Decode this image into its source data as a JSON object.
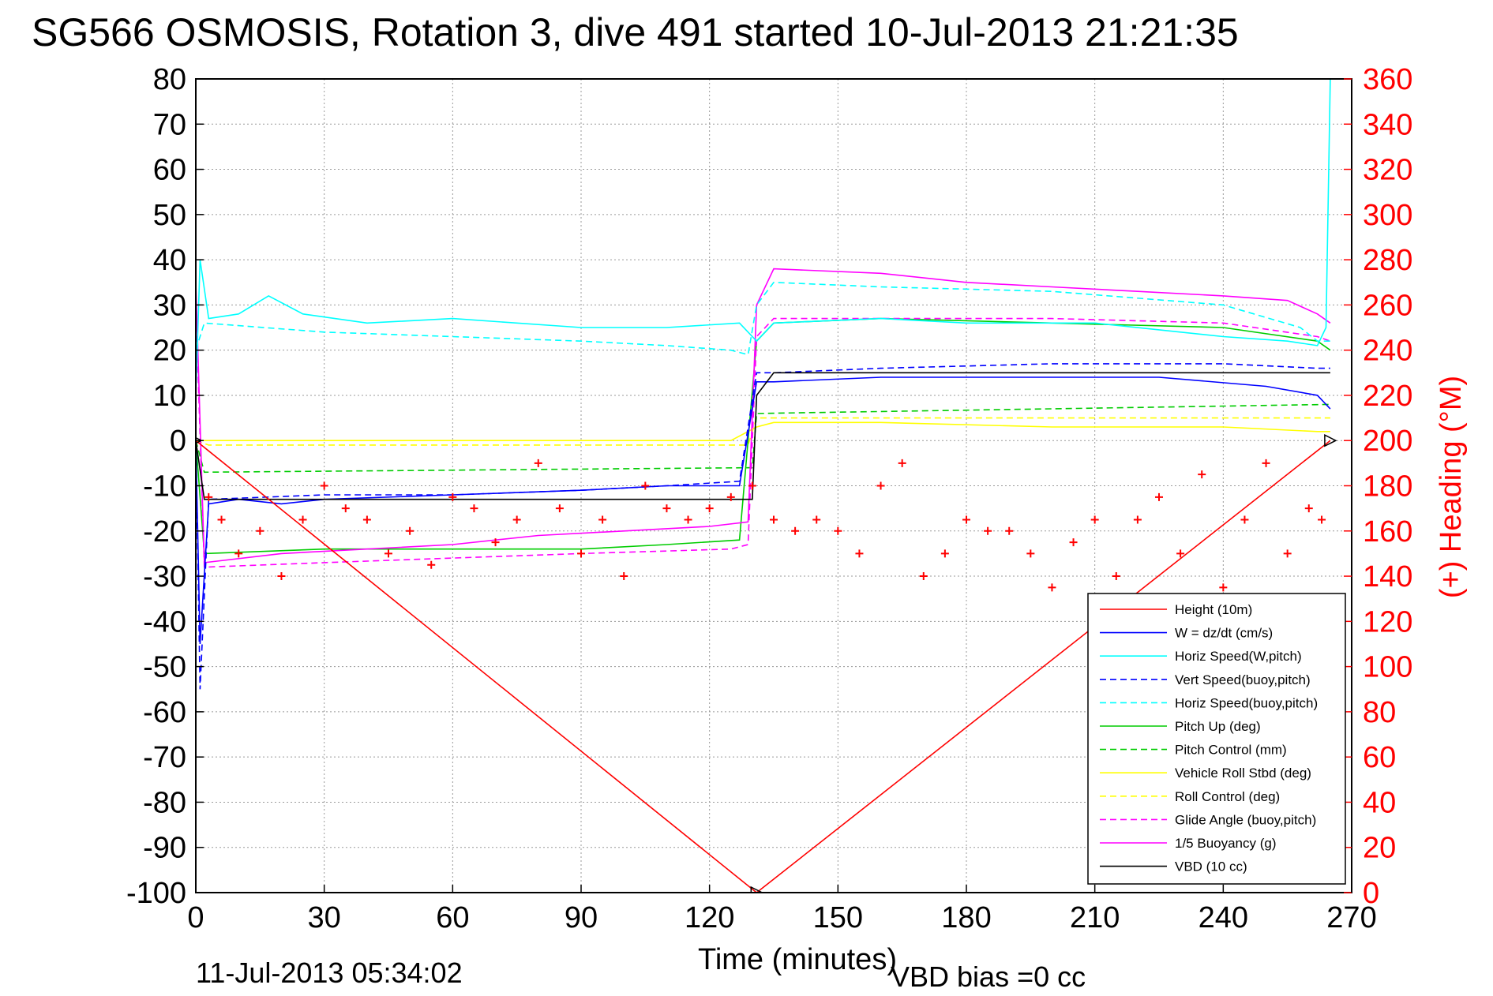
{
  "chart_data": {
    "type": "line",
    "title": "SG566 OSMOSIS, Rotation 3, dive 491 started 10-Jul-2013 21:21:35",
    "xlabel": "Time (minutes)",
    "ylabel": "",
    "y2label": "(+) Heading (°M)",
    "bottom_left_note": "11-Jul-2013 05:34:02",
    "bottom_right_note": "VBD bias =0 cc",
    "xlim": [
      0,
      270
    ],
    "ylim": [
      -100,
      80
    ],
    "y2lim": [
      0,
      360
    ],
    "grid": true,
    "legend_position": "bottom-right",
    "x_ticks": [
      "0",
      "30",
      "60",
      "90",
      "120",
      "150",
      "180",
      "210",
      "240",
      "270"
    ],
    "y_ticks": [
      "80",
      "70",
      "60",
      "50",
      "40",
      "30",
      "20",
      "10",
      "0",
      "-10",
      "-20",
      "-30",
      "-40",
      "-50",
      "-60",
      "-70",
      "-80",
      "-90",
      "-100"
    ],
    "y2_ticks": [
      "360",
      "340",
      "320",
      "300",
      "280",
      "260",
      "240",
      "220",
      "200",
      "180",
      "160",
      "140",
      "120",
      "100",
      "80",
      "60",
      "40",
      "20",
      "0"
    ],
    "colors": {
      "height": "#ff0000",
      "w": "#0000ff",
      "horiz_w": "#00ffff",
      "vert_buoy": "#0000ff",
      "horiz_buoy": "#00ffff",
      "pitch_up": "#00cc00",
      "pitch_ctrl": "#00cc00",
      "roll": "#ffff00",
      "roll_ctrl": "#ffff00",
      "glide": "#ff00ff",
      "buoy": "#ff00ff",
      "vbd": "#000000",
      "heading": "#ff0000",
      "right_axis": "#ff0000"
    },
    "series": [
      {
        "name": "Height (10m)",
        "key": "height",
        "style": "solid",
        "x": [
          0,
          131,
          265
        ],
        "values": [
          0,
          -100,
          0
        ]
      },
      {
        "name": "W = dz/dt (cm/s)",
        "key": "w",
        "style": "solid",
        "x": [
          0,
          1,
          3,
          10,
          20,
          30,
          60,
          90,
          110,
          127,
          131,
          135,
          160,
          200,
          225,
          250,
          262,
          265
        ],
        "values": [
          0,
          -45,
          -14,
          -13,
          -14,
          -13,
          -12,
          -11,
          -10,
          -10,
          13,
          13,
          14,
          14,
          14,
          12,
          10,
          7
        ]
      },
      {
        "name": "Horiz Speed(W,pitch)",
        "key": "horiz_w",
        "style": "solid",
        "x": [
          0,
          1,
          3,
          10,
          17,
          25,
          40,
          60,
          90,
          110,
          127,
          131,
          135,
          160,
          180,
          210,
          240,
          255,
          262,
          264,
          265
        ],
        "values": [
          10,
          40,
          27,
          28,
          32,
          28,
          26,
          27,
          25,
          25,
          26,
          22,
          26,
          27,
          26,
          26,
          23,
          22,
          21,
          25,
          80
        ]
      },
      {
        "name": "Vert Speed(buoy,pitch)",
        "key": "vert_buoy",
        "style": "dashed",
        "x": [
          0,
          1,
          3,
          30,
          60,
          90,
          110,
          127,
          131,
          135,
          160,
          200,
          240,
          262,
          265
        ],
        "values": [
          0,
          -55,
          -13,
          -12,
          -12,
          -11,
          -10,
          -9,
          15,
          15,
          16,
          17,
          17,
          16,
          16
        ]
      },
      {
        "name": "Horiz Speed(buoy,pitch)",
        "key": "horiz_buoy",
        "style": "dashed",
        "x": [
          0,
          2,
          30,
          60,
          90,
          110,
          125,
          129,
          131,
          135,
          160,
          200,
          240,
          258,
          262,
          265
        ],
        "values": [
          20,
          26,
          24,
          23,
          22,
          21,
          20,
          19,
          30,
          35,
          34,
          33,
          30,
          25,
          22,
          22
        ]
      },
      {
        "name": "Pitch Up (deg)",
        "key": "pitch_up",
        "style": "solid",
        "x": [
          0,
          2,
          30,
          60,
          90,
          110,
          127,
          131,
          135,
          160,
          200,
          240,
          262,
          265
        ],
        "values": [
          0,
          -25,
          -24,
          -24,
          -24,
          -23,
          -22,
          22,
          26,
          27,
          26,
          25,
          22,
          20
        ]
      },
      {
        "name": "Pitch Control (mm)",
        "key": "pitch_ctrl",
        "style": "dashed",
        "x": [
          0,
          2,
          130,
          131,
          265
        ],
        "values": [
          0,
          -7,
          -6,
          6,
          8
        ]
      },
      {
        "name": "Vehicle Roll Stbd (deg)",
        "key": "roll",
        "style": "solid",
        "x": [
          0,
          3,
          125,
          131,
          135,
          160,
          200,
          240,
          262,
          265
        ],
        "values": [
          0,
          0,
          0,
          3,
          4,
          4,
          3,
          3,
          2,
          2
        ]
      },
      {
        "name": "Roll Control (deg)",
        "key": "roll_ctrl",
        "style": "dashed",
        "x": [
          0,
          3,
          129,
          131,
          265
        ],
        "values": [
          0,
          -1,
          -1,
          5,
          5
        ]
      },
      {
        "name": "Glide Angle (buoy,pitch)",
        "key": "glide",
        "style": "dashed",
        "x": [
          0,
          2,
          30,
          60,
          90,
          125,
          129,
          131,
          135,
          160,
          200,
          240,
          262,
          265
        ],
        "values": [
          30,
          -28,
          -27,
          -26,
          -25,
          -24,
          -23,
          23,
          27,
          27,
          27,
          26,
          23,
          22
        ]
      },
      {
        "name": "1/5 Buoyancy (g)",
        "key": "buoy",
        "style": "solid",
        "x": [
          0,
          2,
          20,
          40,
          60,
          80,
          100,
          120,
          129,
          131,
          135,
          160,
          180,
          200,
          220,
          240,
          255,
          262,
          265
        ],
        "values": [
          35,
          -27,
          -25,
          -24,
          -23,
          -21,
          -20,
          -19,
          -18,
          30,
          38,
          37,
          35,
          34,
          33,
          32,
          31,
          28,
          26
        ]
      },
      {
        "name": "VBD (10 cc)",
        "key": "vbd",
        "style": "solid",
        "x": [
          0,
          2,
          130,
          131,
          135,
          262,
          265
        ],
        "values": [
          0,
          -13,
          -13,
          10,
          15,
          15,
          15
        ]
      },
      {
        "name": "Heading (°M)",
        "key": "heading",
        "style": "markers",
        "axis": "right",
        "x": [
          3,
          6,
          10,
          15,
          20,
          25,
          30,
          35,
          40,
          45,
          50,
          55,
          60,
          65,
          70,
          75,
          80,
          85,
          90,
          95,
          100,
          105,
          110,
          115,
          120,
          125,
          130,
          135,
          140,
          145,
          150,
          155,
          160,
          165,
          170,
          175,
          180,
          185,
          190,
          195,
          200,
          205,
          210,
          215,
          220,
          225,
          230,
          235,
          240,
          245,
          250,
          255,
          260,
          263
        ],
        "values": [
          175,
          165,
          150,
          160,
          140,
          165,
          180,
          170,
          165,
          150,
          160,
          145,
          175,
          170,
          155,
          165,
          190,
          170,
          150,
          165,
          140,
          180,
          170,
          165,
          170,
          175,
          180,
          165,
          160,
          165,
          160,
          150,
          180,
          190,
          140,
          150,
          165,
          160,
          160,
          150,
          135,
          155,
          165,
          140,
          165,
          175,
          150,
          185,
          135,
          165,
          190,
          150,
          170,
          165
        ]
      }
    ]
  }
}
